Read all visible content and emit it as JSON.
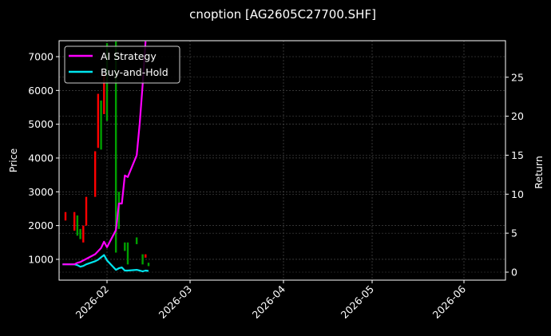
{
  "chart_data": {
    "type": "line",
    "title": "cnoption [AG2605C27700.SHF]",
    "xlabel": "",
    "ylabel": "Price",
    "ylabel_right": "Return",
    "x_tick_labels": [
      "2026-02",
      "2026-03",
      "2026-04",
      "2026-05",
      "2026-06"
    ],
    "y_left_ticks": [
      1000,
      2000,
      3000,
      4000,
      5000,
      6000,
      7000
    ],
    "y_right_ticks": [
      0,
      5,
      10,
      15,
      20,
      25
    ],
    "ylim_left": [
      470,
      7560
    ],
    "ylim_right": [
      -1,
      29.6
    ],
    "xlim": [
      "2026-01-15",
      "2026-06-14"
    ],
    "grid": true,
    "legend_position": "upper left",
    "legend": [
      {
        "label": "AI Strategy",
        "color": "#ff00ff"
      },
      {
        "label": "Buy-and-Hold",
        "color": "#00e5ee"
      }
    ],
    "candlestick": {
      "up_color": "#00a000",
      "down_color": "#ff0000",
      "bars": [
        {
          "date": "2026-01-16",
          "low": 2150,
          "high": 2400,
          "dir": "down"
        },
        {
          "date": "2026-01-19",
          "low": 1850,
          "high": 2400,
          "dir": "down"
        },
        {
          "date": "2026-01-20",
          "low": 1700,
          "high": 2300,
          "dir": "up"
        },
        {
          "date": "2026-01-21",
          "low": 1600,
          "high": 1900,
          "dir": "up"
        },
        {
          "date": "2026-01-22",
          "low": 1500,
          "high": 2000,
          "dir": "down"
        },
        {
          "date": "2026-01-23",
          "low": 2000,
          "high": 2850,
          "dir": "down"
        },
        {
          "date": "2026-01-26",
          "low": 2850,
          "high": 4200,
          "dir": "down"
        },
        {
          "date": "2026-01-27",
          "low": 4300,
          "high": 5900,
          "dir": "down"
        },
        {
          "date": "2026-01-28",
          "low": 4250,
          "high": 5700,
          "dir": "up"
        },
        {
          "date": "2026-01-29",
          "low": 5300,
          "high": 6500,
          "dir": "down"
        },
        {
          "date": "2026-01-30",
          "low": 5100,
          "high": 7400,
          "dir": "up"
        },
        {
          "date": "2026-02-02",
          "low": 1200,
          "high": 7450,
          "dir": "up"
        },
        {
          "date": "2026-02-03",
          "low": 1900,
          "high": 3000,
          "dir": "up"
        },
        {
          "date": "2026-02-05",
          "low": 1250,
          "high": 1500,
          "dir": "up"
        },
        {
          "date": "2026-02-06",
          "low": 850,
          "high": 1500,
          "dir": "up"
        },
        {
          "date": "2026-02-09",
          "low": 1450,
          "high": 1650,
          "dir": "up"
        },
        {
          "date": "2026-02-11",
          "low": 850,
          "high": 1150,
          "dir": "up"
        },
        {
          "date": "2026-02-12",
          "low": 1050,
          "high": 1150,
          "dir": "down"
        },
        {
          "date": "2026-02-13",
          "low": 800,
          "high": 900,
          "dir": "up"
        }
      ]
    },
    "series": [
      {
        "name": "AI Strategy",
        "axis": "right",
        "color": "#ff00ff",
        "x": [
          "2026-01-15",
          "2026-01-16",
          "2026-01-19",
          "2026-01-20",
          "2026-01-21",
          "2026-01-22",
          "2026-01-23",
          "2026-01-26",
          "2026-01-27",
          "2026-01-28",
          "2026-01-29",
          "2026-01-30",
          "2026-02-02",
          "2026-02-03",
          "2026-02-04",
          "2026-02-05",
          "2026-02-06",
          "2026-02-09",
          "2026-02-10",
          "2026-02-11",
          "2026-02-12"
        ],
        "values": [
          1.0,
          1.0,
          1.0,
          1.2,
          1.3,
          1.5,
          1.7,
          2.3,
          2.7,
          3.1,
          3.9,
          3.2,
          5.4,
          8.8,
          8.8,
          12.4,
          12.2,
          15.0,
          19.0,
          24.0,
          29.6
        ]
      },
      {
        "name": "Buy-and-Hold",
        "axis": "right",
        "color": "#00e5ee",
        "x": [
          "2026-01-15",
          "2026-01-16",
          "2026-01-19",
          "2026-01-20",
          "2026-01-21",
          "2026-01-22",
          "2026-01-23",
          "2026-01-26",
          "2026-01-27",
          "2026-01-28",
          "2026-01-29",
          "2026-01-30",
          "2026-02-02",
          "2026-02-03",
          "2026-02-04",
          "2026-02-05",
          "2026-02-06",
          "2026-02-09",
          "2026-02-10",
          "2026-02-11",
          "2026-02-12",
          "2026-02-13"
        ],
        "values": [
          1.0,
          1.0,
          1.0,
          0.9,
          0.7,
          0.8,
          1.0,
          1.4,
          1.6,
          1.9,
          2.2,
          1.5,
          0.3,
          0.5,
          0.6,
          0.2,
          0.2,
          0.3,
          0.2,
          0.1,
          0.2,
          0.15
        ]
      }
    ]
  }
}
